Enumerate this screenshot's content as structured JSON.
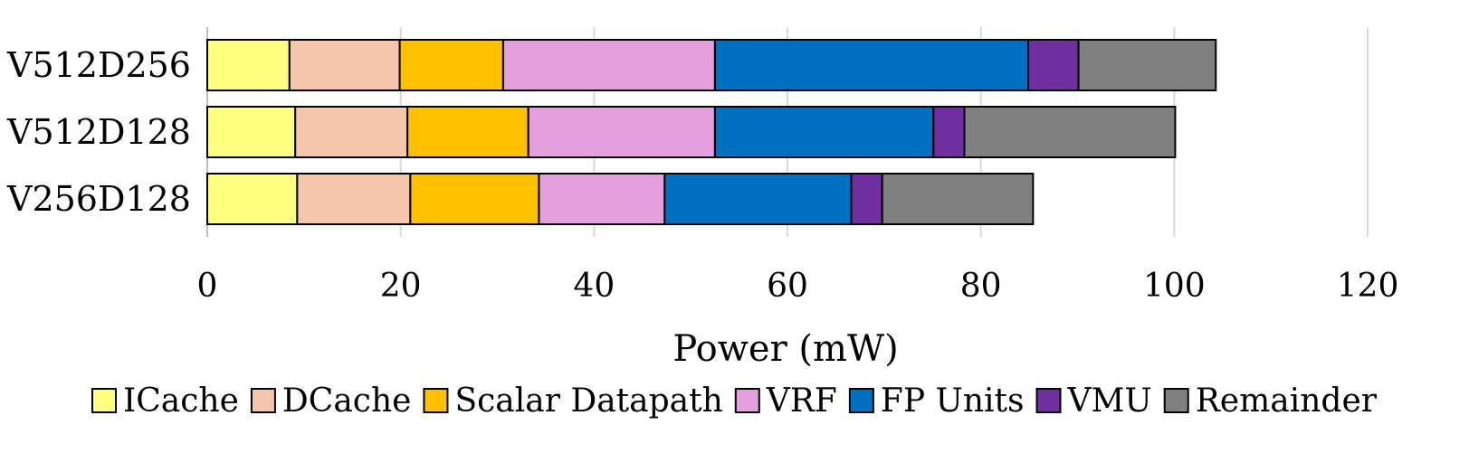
{
  "chart_data": {
    "type": "bar",
    "orientation": "horizontal",
    "stacked": true,
    "title": "",
    "xlabel": "Power (mW)",
    "ylabel": "",
    "xlim": [
      0,
      120
    ],
    "xticks": [
      "0",
      "20",
      "40",
      "60",
      "80",
      "100",
      "120"
    ],
    "grid": "vertical",
    "legend_position": "bottom",
    "categories": [
      "V512D256",
      "V512D128",
      "V256D128"
    ],
    "series": [
      {
        "name": "ICache",
        "color": "#FFFF80",
        "values": [
          8.5,
          9.1,
          9.3
        ]
      },
      {
        "name": "DCache",
        "color": "#F5C6AB",
        "values": [
          11.4,
          11.6,
          11.7
        ]
      },
      {
        "name": "Scalar Datapath",
        "color": "#FFC000",
        "values": [
          10.7,
          12.5,
          13.3
        ]
      },
      {
        "name": "VRF",
        "color": "#E4A0DC",
        "values": [
          21.9,
          19.3,
          13.0
        ]
      },
      {
        "name": "FP Units",
        "color": "#0070C0",
        "values": [
          32.4,
          22.6,
          19.3
        ]
      },
      {
        "name": "VMU",
        "color": "#7030A0",
        "values": [
          5.2,
          3.2,
          3.2
        ]
      },
      {
        "name": "Remainder",
        "color": "#808080",
        "values": [
          14.2,
          21.8,
          15.6
        ]
      }
    ]
  }
}
